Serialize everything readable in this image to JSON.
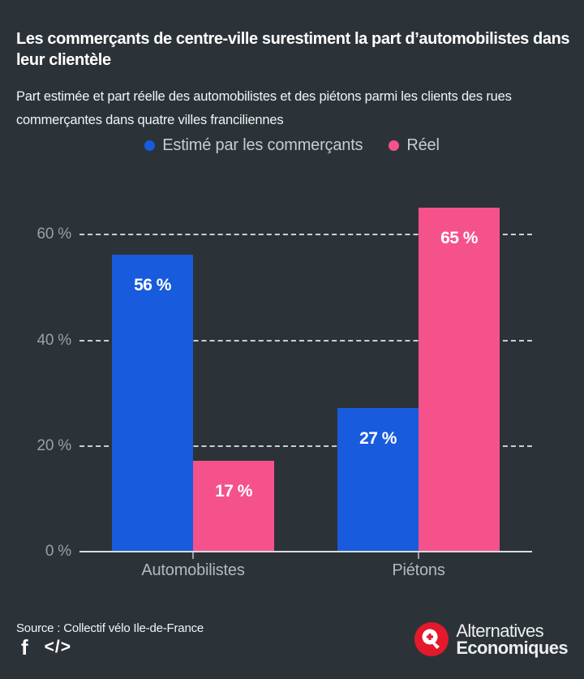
{
  "header": {
    "title": "Les commerçants de centre-ville surestiment la part d’automobilistes dans leur clientèle",
    "subtitle": "Part estimée et part réelle des automobilistes et des piétons parmi les clients des rues commerçantes dans quatre villes franciliennes"
  },
  "legend": {
    "items": [
      {
        "label": "Estimé par les commerçants",
        "color": "#185bdc"
      },
      {
        "label": "Réel",
        "color": "#f5528c"
      }
    ]
  },
  "chart_data": {
    "type": "bar",
    "categories": [
      "Automobilistes",
      "Piétons"
    ],
    "series": [
      {
        "name": "Estimé par les commerçants",
        "color": "#185bdc",
        "values": [
          56,
          27
        ]
      },
      {
        "name": "Réel",
        "color": "#f5528c",
        "values": [
          17,
          65
        ]
      }
    ],
    "value_labels": [
      [
        "56 %",
        "27 %"
      ],
      [
        "17 %",
        "65 %"
      ]
    ],
    "value_label_format": "{v} %",
    "y_ticks": [
      {
        "value": 0,
        "label": "0 %"
      },
      {
        "value": 20,
        "label": "20 %"
      },
      {
        "value": 40,
        "label": "40 %"
      },
      {
        "value": 60,
        "label": "60 %"
      }
    ],
    "ylim": [
      0,
      67
    ],
    "grid": "horizontal-dashed",
    "legend_position": "top",
    "title": "Les commerçants de centre-ville surestiment la part d’automobilistes dans leur clientèle",
    "xlabel": "",
    "ylabel": ""
  },
  "footer": {
    "source": "Source : Collectif vélo Ile-de-France",
    "facebook_icon": "f",
    "embed_icon": "</>",
    "logo": {
      "line1": "Alternatives",
      "line2": "Economiques"
    }
  },
  "colors": {
    "background": "#2c3338",
    "estimated_blue": "#185bdc",
    "real_pink": "#f5528c",
    "logo_red": "#e4192c",
    "axis_text": "#9aa0a3",
    "category_text": "#b5b9bb"
  }
}
